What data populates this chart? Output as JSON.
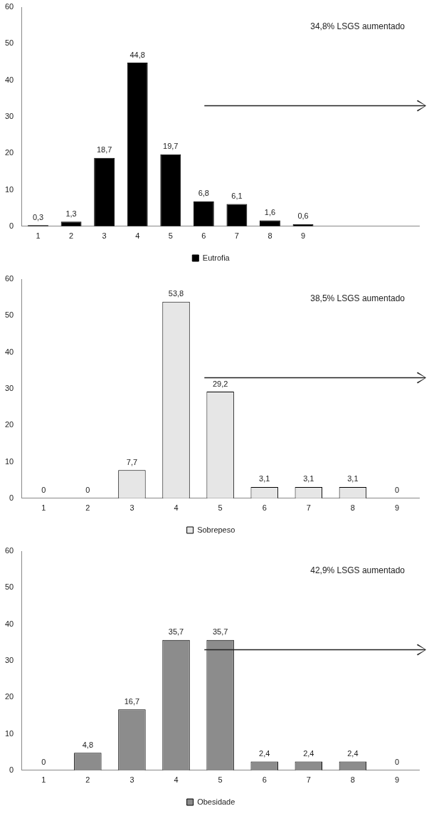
{
  "chart_data": [
    {
      "type": "bar",
      "categories": [
        "1",
        "2",
        "3",
        "4",
        "5",
        "6",
        "7",
        "8",
        "9",
        null,
        null,
        null
      ],
      "ylim": [
        0,
        60
      ],
      "yticks": [
        0,
        10,
        20,
        30,
        40,
        50,
        60
      ],
      "grid": false,
      "legend": "bottom",
      "annotations": [
        "34,8% LSGS aumentado"
      ],
      "series": [
        {
          "name": "Eutrofia",
          "color": "#000000",
          "values": [
            0.3,
            1.3,
            18.7,
            44.8,
            19.7,
            6.8,
            6.1,
            1.6,
            0.6,
            null,
            null,
            null
          ],
          "value_labels": [
            "0,3",
            "1,3",
            "18,7",
            "44,8",
            "19,7",
            "6,8",
            "6,1",
            "1,6",
            "0,6",
            null,
            null,
            null
          ]
        }
      ]
    },
    {
      "type": "bar",
      "categories": [
        "1",
        "2",
        "3",
        "4",
        "5",
        "6",
        "7",
        "8",
        "9"
      ],
      "ylim": [
        0,
        60
      ],
      "yticks": [
        0,
        10,
        20,
        30,
        40,
        50,
        60
      ],
      "grid": false,
      "legend": "bottom",
      "annotations": [
        "38,5% LSGS aumentado"
      ],
      "series": [
        {
          "name": "Sobrepeso",
          "color": "#e6e6e6",
          "values": [
            0,
            0,
            7.7,
            53.8,
            29.2,
            3.1,
            3.1,
            3.1,
            0
          ],
          "value_labels": [
            "0",
            "0",
            "7,7",
            "53,8",
            "29,2",
            "3,1",
            "3,1",
            "3,1",
            "0"
          ]
        }
      ]
    },
    {
      "type": "bar",
      "categories": [
        "1",
        "2",
        "3",
        "4",
        "5",
        "6",
        "7",
        "8",
        "9"
      ],
      "ylim": [
        0,
        60
      ],
      "yticks": [
        0,
        10,
        20,
        30,
        40,
        50,
        60
      ],
      "grid": false,
      "legend": "bottom",
      "annotations": [
        "42,9% LSGS aumentado"
      ],
      "series": [
        {
          "name": "Obesidade",
          "color": "#8c8c8c",
          "values": [
            0,
            4.8,
            16.7,
            35.7,
            35.7,
            2.4,
            2.4,
            2.4,
            0
          ],
          "value_labels": [
            "0",
            "4,8",
            "16,7",
            "35,7",
            "35,7",
            "2,4",
            "2,4",
            "2,4",
            "0"
          ]
        }
      ]
    }
  ]
}
